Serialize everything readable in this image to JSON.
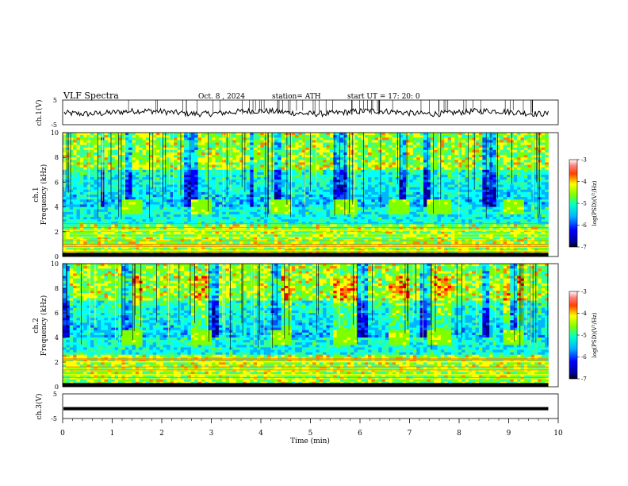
{
  "header": {
    "title": "VLF  Spectra",
    "date": "Oct. 8  , 2024",
    "station": "station= ATH",
    "start": "start  UT  =    17: 20: 0"
  },
  "colors": {
    "palette": [
      "#00008b",
      "#0000ff",
      "#0050ff",
      "#00b4ff",
      "#00ffff",
      "#33ff99",
      "#7fff00",
      "#ffff00",
      "#ff8000",
      "#ff0000",
      "#ff8080",
      "#ffffff"
    ],
    "trace": "#000000",
    "axis": "#000000"
  },
  "chart_data": [
    {
      "type": "line",
      "name": "ch1-waveform",
      "ylabel": "ch.1(V)",
      "ylim": [
        -5,
        5
      ],
      "yticks": [
        "5",
        "-5"
      ],
      "xlim": [
        0,
        10
      ],
      "approx_amplitude": 1.5
    },
    {
      "type": "heatmap",
      "name": "ch1-spectrogram",
      "ylabel_line1": "ch.1",
      "ylabel_line2": "Frequency  (kHz)",
      "ylim": [
        0,
        10
      ],
      "yticks": [
        "0",
        "2",
        "4",
        "6",
        "8",
        "10"
      ],
      "xlim": [
        0,
        10
      ],
      "data_end_min": 9.8,
      "colorbar": {
        "label": "log(PSD)(V²/Hz)",
        "range": [
          -7,
          -3
        ],
        "ticks": [
          "-3",
          "-4",
          "-5",
          "-6",
          "-7"
        ]
      },
      "bursts_min": [
        1.2,
        2.6,
        4.2,
        5.5,
        6.6,
        7.4,
        8.9
      ]
    },
    {
      "type": "heatmap",
      "name": "ch2-spectrogram",
      "ylabel_line1": "ch.2",
      "ylabel_line2": "Frequency  (kHz)",
      "ylim": [
        0,
        10
      ],
      "yticks": [
        "0",
        "2",
        "4",
        "6",
        "8",
        "10"
      ],
      "xlim": [
        0,
        10
      ],
      "data_end_min": 9.8,
      "colorbar": {
        "label": "log(PSD)(V²/Hz)",
        "range": [
          -7,
          -3
        ],
        "ticks": [
          "-3",
          "-4",
          "-5",
          "-6",
          "-7"
        ]
      },
      "bursts_min": [
        1.2,
        2.6,
        4.2,
        5.5,
        6.6,
        7.4,
        8.9
      ]
    },
    {
      "type": "line",
      "name": "ch3-waveform",
      "ylabel": "ch.3(V)",
      "ylim": [
        -5,
        5
      ],
      "yticks": [
        "5",
        "-5"
      ],
      "xlim": [
        0,
        10
      ],
      "approx_level": -1.0
    }
  ],
  "xaxis": {
    "label": "Time  (min)",
    "ticks": [
      "0",
      "1",
      "2",
      "3",
      "4",
      "5",
      "6",
      "7",
      "8",
      "9",
      "10"
    ]
  }
}
